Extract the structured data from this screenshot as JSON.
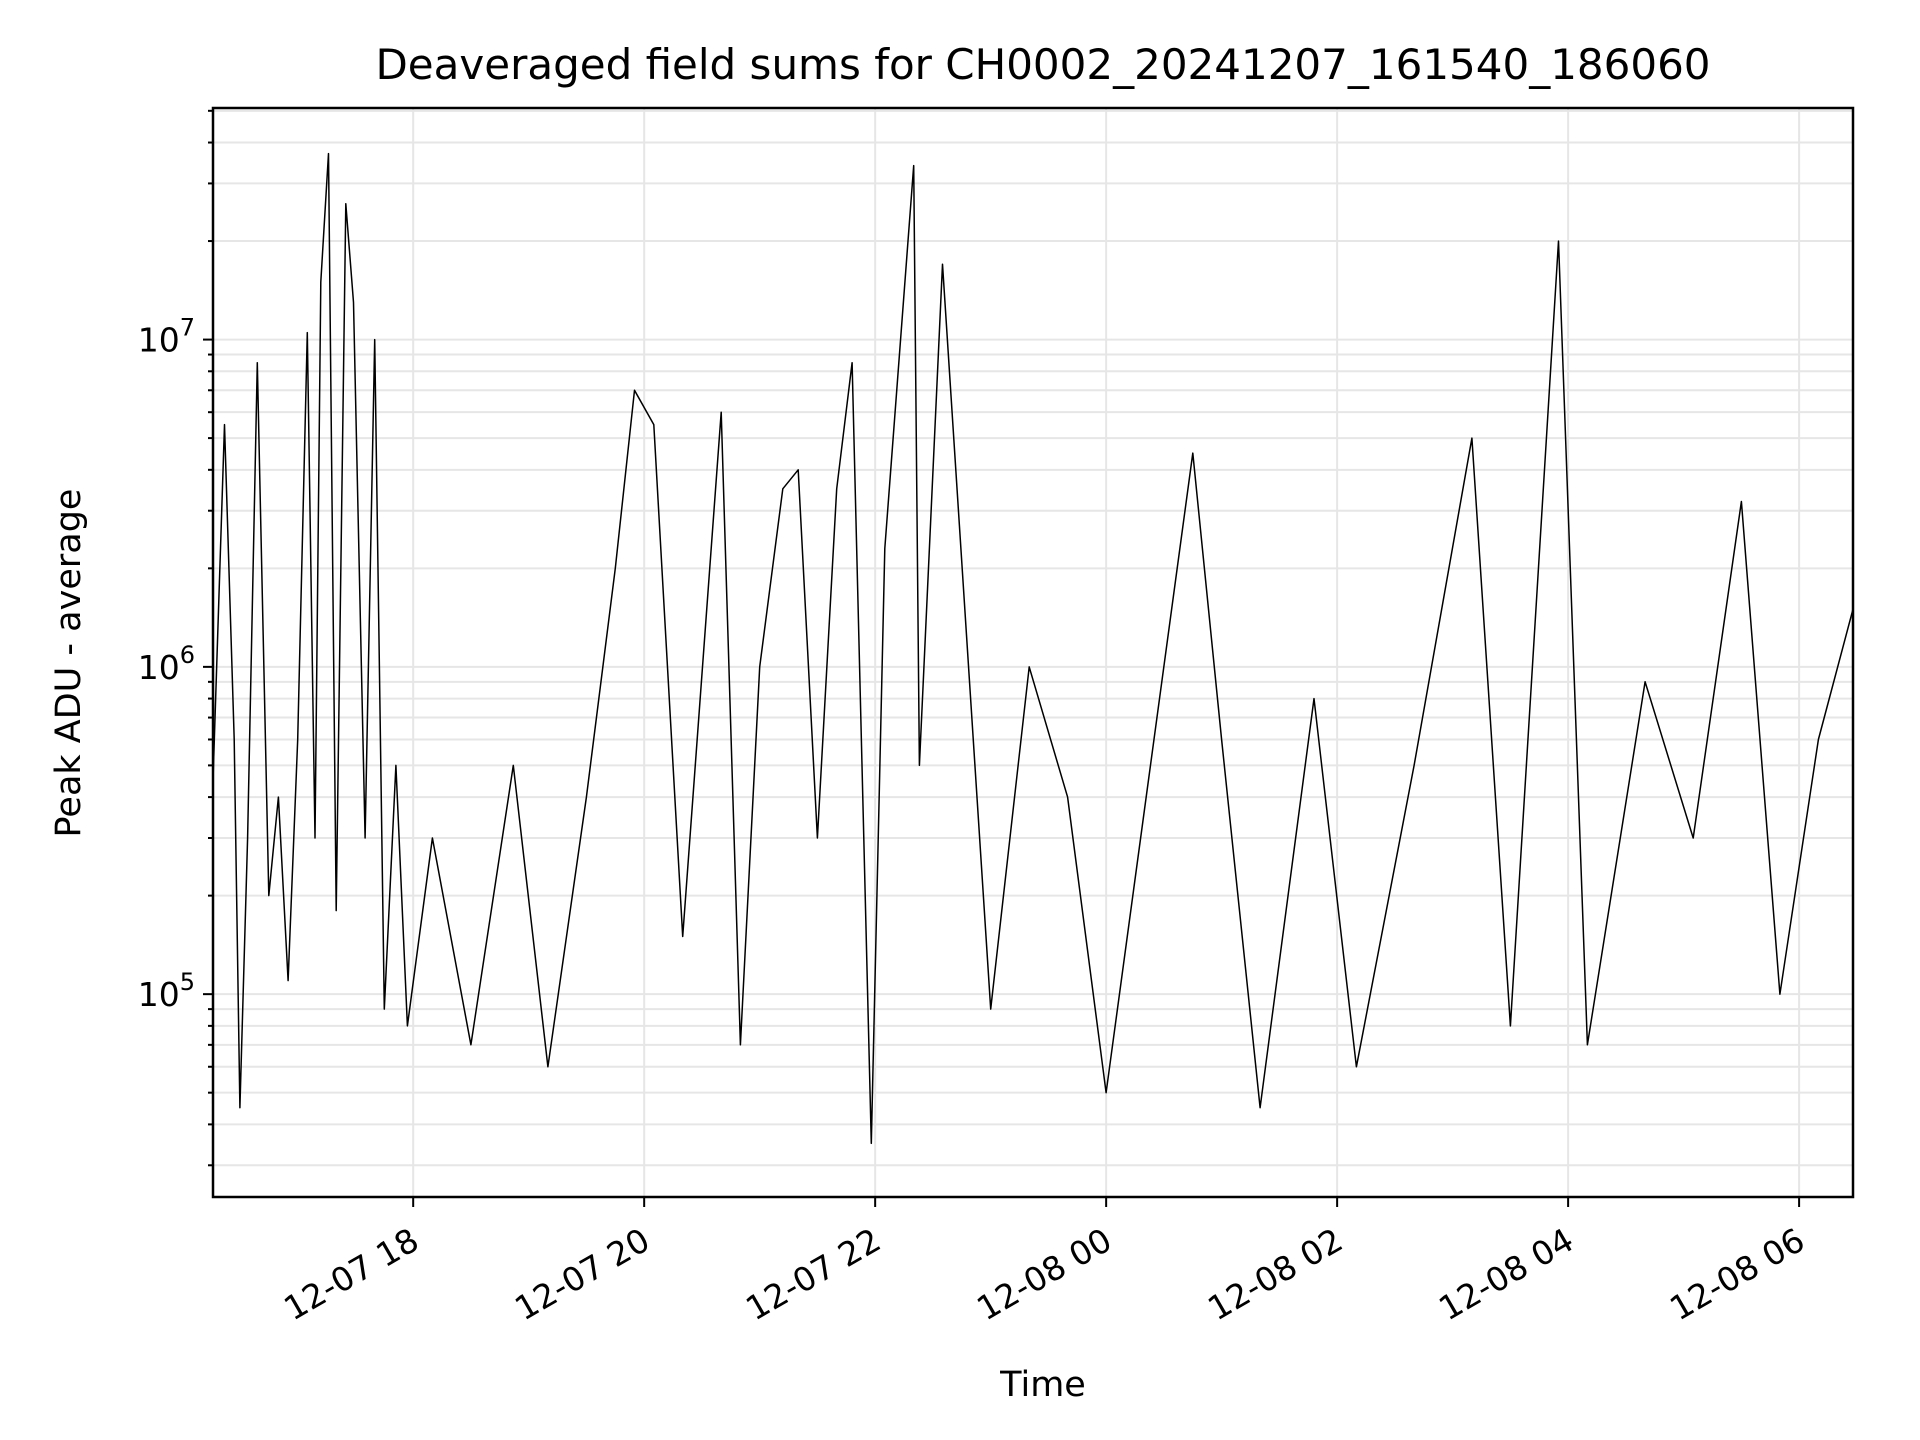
{
  "chart_data": {
    "type": "line",
    "title": "Deaveraged field sums for CH0002_20241207_161540_186060",
    "xlabel": "Time",
    "ylabel": "Peak ADU - average",
    "y_scale": "log",
    "ylim": [
      24000,
      51000000
    ],
    "xlim": [
      "2024-12-07T16:16",
      "2024-12-08T06:28"
    ],
    "grid": true,
    "line_color": "#000000",
    "grid_color": "#e6e6e6",
    "x_ticks": [
      {
        "value": "2024-12-07T18:00",
        "label": "12-07 18"
      },
      {
        "value": "2024-12-07T20:00",
        "label": "12-07 20"
      },
      {
        "value": "2024-12-07T22:00",
        "label": "12-07 22"
      },
      {
        "value": "2024-12-08T00:00",
        "label": "12-08 00"
      },
      {
        "value": "2024-12-08T02:00",
        "label": "12-08 02"
      },
      {
        "value": "2024-12-08T04:00",
        "label": "12-08 04"
      },
      {
        "value": "2024-12-08T06:00",
        "label": "12-08 06"
      }
    ],
    "y_ticks": [
      {
        "value": 100000,
        "base": "10",
        "exp": "5"
      },
      {
        "value": 1000000,
        "base": "10",
        "exp": "6"
      },
      {
        "value": 10000000,
        "base": "10",
        "exp": "7"
      }
    ],
    "series": [
      {
        "x": [
          "2024-12-07T16:16",
          "2024-12-07T16:22",
          "2024-12-07T16:27",
          "2024-12-07T16:30",
          "2024-12-07T16:34",
          "2024-12-07T16:39",
          "2024-12-07T16:45",
          "2024-12-07T16:50",
          "2024-12-07T16:55",
          "2024-12-07T17:00",
          "2024-12-07T17:05",
          "2024-12-07T17:09",
          "2024-12-07T17:12",
          "2024-12-07T17:16",
          "2024-12-07T17:20",
          "2024-12-07T17:25",
          "2024-12-07T17:29",
          "2024-12-07T17:35",
          "2024-12-07T17:40",
          "2024-12-07T17:45",
          "2024-12-07T17:51",
          "2024-12-07T17:57",
          "2024-12-07T18:10",
          "2024-12-07T18:30",
          "2024-12-07T18:52",
          "2024-12-07T19:10",
          "2024-12-07T19:30",
          "2024-12-07T19:45",
          "2024-12-07T19:55",
          "2024-12-07T20:05",
          "2024-12-07T20:20",
          "2024-12-07T20:40",
          "2024-12-07T20:50",
          "2024-12-07T21:00",
          "2024-12-07T21:12",
          "2024-12-07T21:20",
          "2024-12-07T21:30",
          "2024-12-07T21:40",
          "2024-12-07T21:48",
          "2024-12-07T21:58",
          "2024-12-07T22:05",
          "2024-12-07T22:20",
          "2024-12-07T22:23",
          "2024-12-07T22:35",
          "2024-12-07T23:00",
          "2024-12-07T23:20",
          "2024-12-07T23:40",
          "2024-12-08T00:00",
          "2024-12-08T00:45",
          "2024-12-08T01:00",
          "2024-12-08T01:20",
          "2024-12-08T01:48",
          "2024-12-08T02:10",
          "2024-12-08T02:40",
          "2024-12-08T03:10",
          "2024-12-08T03:30",
          "2024-12-08T03:55",
          "2024-12-08T04:10",
          "2024-12-08T04:40",
          "2024-12-08T05:05",
          "2024-12-08T05:30",
          "2024-12-08T05:50",
          "2024-12-08T06:10",
          "2024-12-08T06:28"
        ],
        "y": [
          450000,
          5500000,
          600000,
          45000,
          300000,
          8500000,
          200000,
          400000,
          110000,
          600000,
          10500000,
          300000,
          15000000,
          37000000,
          180000,
          26000000,
          13000000,
          300000,
          10000000,
          90000,
          500000,
          80000,
          300000,
          70000,
          500000,
          60000,
          400000,
          2000000,
          7000000,
          5500000,
          150000,
          6000000,
          70000,
          1000000,
          3500000,
          4000000,
          300000,
          3500000,
          8500000,
          35000,
          2300000,
          34000000,
          500000,
          17000000,
          90000,
          1000000,
          400000,
          50000,
          4500000,
          600000,
          45000,
          800000,
          60000,
          500000,
          5000000,
          80000,
          20000000,
          70000,
          900000,
          300000,
          3200000,
          100000,
          600000,
          1500000
        ]
      }
    ]
  }
}
